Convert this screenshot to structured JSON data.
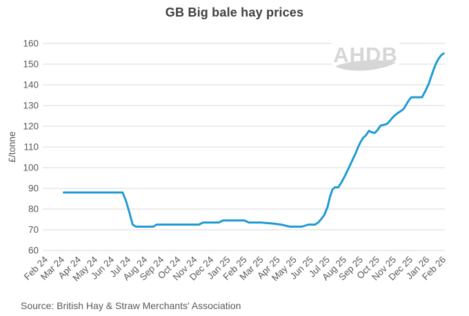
{
  "title": "GB Big bale hay prices",
  "source": "Source: British Hay & Straw Merchants' Association",
  "watermark": "AHDB",
  "colors": {
    "line": "#1f9ad3",
    "grid": "#d9d9d9",
    "title_text": "#3f3f3f",
    "axis_text": "#595959",
    "watermark": "#d6d6d6",
    "background": "#ffffff"
  },
  "chart_data": {
    "type": "line",
    "title": "GB Big bale hay prices",
    "xlabel": "",
    "ylabel": "£/tonne",
    "ylim": [
      60,
      160
    ],
    "ytick_step": 10,
    "grid": "horizontal-only",
    "legend": "none",
    "x_tick_labels": [
      "Feb 24",
      "Mar 24",
      "Apr 24",
      "May 24",
      "Jun 24",
      "Jul 24",
      "Aug 24",
      "Sep 24",
      "Oct 24",
      "Nov 24",
      "Dec 24",
      "Jan 25",
      "Feb 25",
      "Mar 25",
      "Apr 25",
      "May 25",
      "Jun 25",
      "Jul 25",
      "Aug 25",
      "Sep 25",
      "Oct 25",
      "Nov 25",
      "Dec 25",
      "Jan 26",
      "Feb 26"
    ],
    "x_unit": "months from Feb 24 tick (0 = Feb 24, 24 = Feb 26), weekly price series",
    "series": [
      {
        "name": "GB big bale hay price (£/tonne)",
        "points": [
          [
            1.1,
            88
          ],
          [
            4.65,
            88
          ],
          [
            4.85,
            84
          ],
          [
            5.05,
            78.5
          ],
          [
            5.25,
            72.5
          ],
          [
            5.45,
            71.5
          ],
          [
            6.5,
            71.5
          ],
          [
            6.7,
            72.5
          ],
          [
            9.25,
            72.5
          ],
          [
            9.5,
            73.5
          ],
          [
            10.45,
            73.5
          ],
          [
            10.7,
            74.5
          ],
          [
            12.0,
            74.5
          ],
          [
            12.25,
            73.5
          ],
          [
            13.0,
            73.5
          ],
          [
            13.7,
            73
          ],
          [
            14.2,
            72.5
          ],
          [
            14.55,
            71.8
          ],
          [
            14.75,
            71.5
          ],
          [
            15.45,
            71.5
          ],
          [
            15.65,
            72
          ],
          [
            15.85,
            72.5
          ],
          [
            16.25,
            72.5
          ],
          [
            16.45,
            73.5
          ],
          [
            16.6,
            75
          ],
          [
            16.8,
            77
          ],
          [
            17.0,
            81
          ],
          [
            17.15,
            86
          ],
          [
            17.3,
            89.5
          ],
          [
            17.45,
            90.5
          ],
          [
            17.65,
            90.5
          ],
          [
            17.85,
            93
          ],
          [
            18.05,
            96
          ],
          [
            18.2,
            98.5
          ],
          [
            18.35,
            101
          ],
          [
            18.55,
            104.5
          ],
          [
            18.7,
            107
          ],
          [
            18.85,
            110
          ],
          [
            19.0,
            112.5
          ],
          [
            19.15,
            114.5
          ],
          [
            19.3,
            115.5
          ],
          [
            19.5,
            117.8
          ],
          [
            19.7,
            117
          ],
          [
            19.85,
            116.8
          ],
          [
            20.0,
            118
          ],
          [
            20.2,
            120.3
          ],
          [
            20.45,
            120.8
          ],
          [
            20.6,
            121.2
          ],
          [
            20.75,
            122.5
          ],
          [
            20.9,
            124
          ],
          [
            21.05,
            125.2
          ],
          [
            21.25,
            126.5
          ],
          [
            21.45,
            127.5
          ],
          [
            21.6,
            128.5
          ],
          [
            21.75,
            130.5
          ],
          [
            21.9,
            132.5
          ],
          [
            22.05,
            134
          ],
          [
            22.7,
            134
          ],
          [
            22.9,
            137
          ],
          [
            23.1,
            140.5
          ],
          [
            23.25,
            144
          ],
          [
            23.4,
            147.5
          ],
          [
            23.55,
            150.5
          ],
          [
            23.7,
            152.7
          ],
          [
            23.85,
            154.3
          ],
          [
            24.0,
            155.2
          ]
        ]
      }
    ]
  }
}
